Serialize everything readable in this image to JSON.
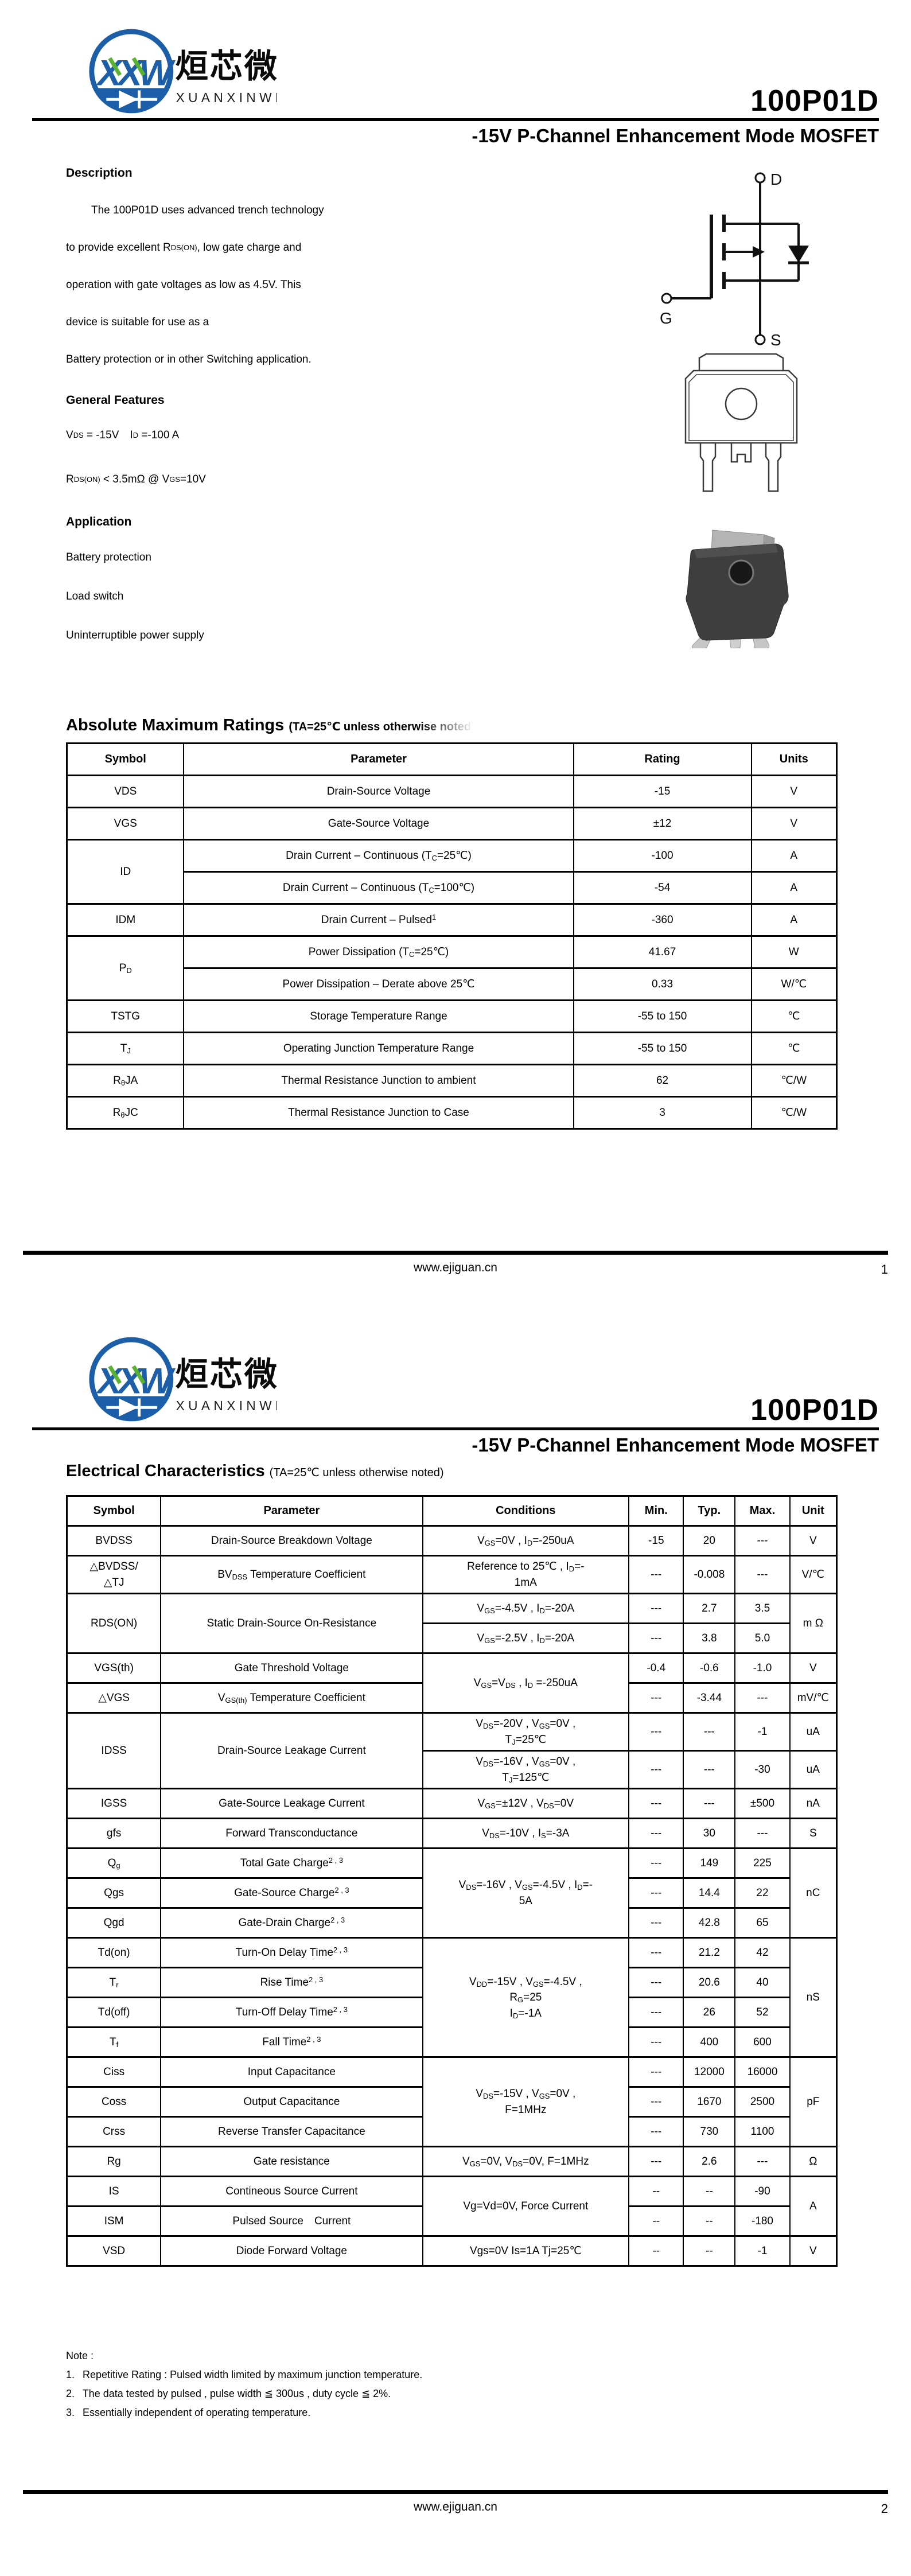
{
  "colors": {
    "brand_blue": "#1c5fa8",
    "brand_green": "#59b331",
    "text": "#000000"
  },
  "brand": {
    "logo_monogram": "XXW",
    "name_cn": "烜芯微",
    "name_en": "XUANXINWEI"
  },
  "doc": {
    "part_number": "100P01D",
    "subtitle": "-15V P-Channel Enhancement Mode MOSFET",
    "site": "www.ejiguan.cn"
  },
  "page1": {
    "page_number": "1",
    "description": {
      "heading": "Description",
      "lines": [
        "The 100P01D uses advanced trench technology",
        "to provide excellent R~DS(ON)~, low gate charge and",
        "operation with gate voltages as low as 4.5V. This",
        "device is suitable for use as a",
        "Battery protection or in other Switching application."
      ]
    },
    "features": {
      "heading": "General Features",
      "lines": [
        "V~DS~ = -15V I~D~ =-100 A",
        "R~DS(ON)~ < 3.5mΩ @ V~GS~=10V"
      ]
    },
    "application": {
      "heading": "Application",
      "lines": [
        "Battery protection",
        "Load switch",
        "Uninterruptible power supply"
      ]
    },
    "mosfet_symbol": {
      "drain": "D",
      "gate": "G",
      "source": "S"
    },
    "amr": {
      "heading": "Absolute Maximum Ratings",
      "note": "(TA=25℃ unless otherwise noted)",
      "headers": [
        "Symbol",
        "Parameter",
        "Rating",
        "Units"
      ],
      "rows": [
        [
          "VDS",
          "Drain-Source Voltage",
          "-15",
          "V"
        ],
        [
          "VGS",
          "Gate-Source Voltage",
          "±12",
          "V"
        ],
        [
          {
            "t": "ID",
            "rs": 2
          },
          "Drain Current – Continuous (T~C~=25℃)",
          "-100",
          "A"
        ],
        [
          "Drain Current – Continuous (T~C~=100℃)",
          "-54",
          "A"
        ],
        [
          "IDM",
          "Drain Current – Pulsed^1^",
          "-360",
          "A"
        ],
        [
          {
            "t": "P~D~",
            "rs": 2
          },
          "Power Dissipation (T~C~=25℃)",
          "41.67",
          "W"
        ],
        [
          "Power Dissipation – Derate above 25℃",
          "0.33",
          "W/℃"
        ],
        [
          "TSTG",
          "Storage Temperature Range",
          "-55 to 150",
          "℃"
        ],
        [
          "T~J~",
          "Operating Junction Temperature Range",
          "-55 to 150",
          "℃"
        ],
        [
          "R~θ~JA",
          "Thermal Resistance Junction to ambient",
          "62",
          "℃/W"
        ],
        [
          "R~θ~JC",
          "Thermal Resistance Junction to Case",
          "3",
          "℃/W"
        ]
      ]
    }
  },
  "page2": {
    "page_number": "2",
    "ec": {
      "heading": "Electrical Characteristics",
      "note": "(TA=25℃ unless otherwise noted)",
      "headers": [
        "Symbol",
        "Parameter",
        "Conditions",
        "Min.",
        "Typ.",
        "Max.",
        "Unit"
      ],
      "rows": [
        [
          "BVDSS",
          "Drain-Source Breakdown Voltage",
          "V~GS~=0V , I~D~=-250uA",
          "-15",
          "20",
          "---",
          "V"
        ],
        [
          "△BVDSS/\n△TJ",
          "BV~DSS~ Temperature Coefficient",
          "Reference to 25℃ , I~D~=-\n1mA",
          "---",
          "-0.008",
          "---",
          "V/℃"
        ],
        [
          {
            "t": "RDS(ON)",
            "rs": 2
          },
          {
            "t": "Static Drain-Source On-Resistance",
            "rs": 2
          },
          "V~GS~=-4.5V , I~D~=-20A",
          "---",
          "2.7",
          "3.5",
          {
            "t": "m Ω",
            "rs": 2
          }
        ],
        [
          "V~GS~=-2.5V , I~D~=-20A",
          "---",
          "3.8",
          "5.0"
        ],
        [
          "VGS(th)",
          "Gate Threshold Voltage",
          {
            "t": "V~GS~=V~DS~ , I~D~ =-250uA",
            "rs": 2
          },
          "-0.4",
          "-0.6",
          "-1.0",
          "V"
        ],
        [
          "△VGS",
          "V~GS(th)~ Temperature Coefficient",
          "---",
          "-3.44",
          "---",
          "mV/℃"
        ],
        [
          {
            "t": "IDSS",
            "rs": 2
          },
          {
            "t": "Drain-Source Leakage Current",
            "rs": 2
          },
          "V~DS~=-20V , V~GS~=0V ,\nT~J~=25℃",
          "---",
          "---",
          "-1",
          "uA"
        ],
        [
          "V~DS~=-16V , V~GS~=0V ,\nT~J~=125℃",
          "---",
          "---",
          "-30",
          "uA"
        ],
        [
          "IGSS",
          "Gate-Source Leakage Current",
          "V~GS~=±12V , V~DS~=0V",
          "---",
          "---",
          "±500",
          "nA"
        ],
        [
          "gfs",
          "Forward Transconductance",
          "V~DS~=-10V , I~S~=-3A",
          "---",
          "30",
          "---",
          "S"
        ],
        [
          "Q~g~",
          "Total Gate Charge^2 , 3^",
          {
            "t": "V~DS~=-16V , V~GS~=-4.5V , I~D~=-\n5A",
            "rs": 3
          },
          "---",
          "149",
          "225",
          {
            "t": "nC",
            "rs": 3
          }
        ],
        [
          "Qgs",
          "Gate-Source Charge^2 , 3^",
          "---",
          "14.4",
          "22"
        ],
        [
          "Qgd",
          "Gate-Drain Charge^2 , 3^",
          "---",
          "42.8",
          "65"
        ],
        [
          "Td(on)",
          "Turn-On Delay Time^2 , 3^",
          {
            "t": "V~DD~=-15V , V~GS~=-4.5V ,\nR~G~=25\nI~D~=-1A",
            "rs": 4
          },
          "---",
          "21.2",
          "42",
          {
            "t": "nS",
            "rs": 4
          }
        ],
        [
          "T~r~",
          "Rise Time^2 , 3^",
          "---",
          "20.6",
          "40"
        ],
        [
          "Td(off)",
          "Turn-Off Delay Time^2 , 3^",
          "---",
          "26",
          "52"
        ],
        [
          "T~f~",
          "Fall Time^2 , 3^",
          "---",
          "400",
          "600"
        ],
        [
          "Ciss",
          "Input Capacitance",
          {
            "t": "V~DS~=-15V , V~GS~=0V ,\nF=1MHz",
            "rs": 3
          },
          "---",
          "12000",
          "16000",
          {
            "t": "pF",
            "rs": 3
          }
        ],
        [
          "Coss",
          "Output Capacitance",
          "---",
          "1670",
          "2500"
        ],
        [
          "Crss",
          "Reverse Transfer Capacitance",
          "---",
          "730",
          "1100"
        ],
        [
          "Rg",
          "Gate resistance",
          "V~GS~=0V, V~DS~=0V, F=1MHz",
          "---",
          "2.6",
          "---",
          "Ω"
        ],
        [
          "IS",
          "Contineous Source Current",
          {
            "t": "Vg=Vd=0V, Force Current",
            "rs": 2
          },
          "--",
          "--",
          "-90",
          {
            "t": "A",
            "rs": 2
          }
        ],
        [
          "ISM",
          "Pulsed Source Current",
          "--",
          "--",
          "-180"
        ],
        [
          "VSD",
          "Diode Forward Voltage",
          "Vgs=0V Is=1A Tj=25℃",
          "--",
          "--",
          "-1",
          "V"
        ]
      ]
    },
    "notes": {
      "heading": "Note :",
      "items": [
        "1.  Repetitive Rating : Pulsed width limited by maximum junction temperature.",
        "2.  The data tested by pulsed , pulse width ≦ 300us , duty cycle ≦ 2%.",
        "3.  Essentially independent of operating temperature."
      ]
    }
  }
}
